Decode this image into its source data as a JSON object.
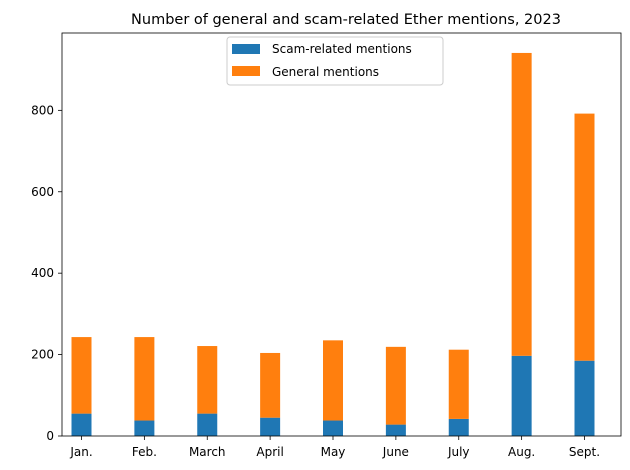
{
  "chart_data": {
    "type": "bar",
    "stacked": true,
    "title": "Number of general and scam-related Ether mentions, 2023",
    "xlabel": "",
    "ylabel": "",
    "categories": [
      "Jan.",
      "Feb.",
      "March",
      "April",
      "May",
      "June",
      "July",
      "Aug.",
      "Sept."
    ],
    "series": [
      {
        "name": "Scam-related mentions",
        "color": "#1f77b4",
        "values": [
          55,
          38,
          55,
          45,
          38,
          28,
          42,
          197,
          185
        ]
      },
      {
        "name": "General mentions",
        "color": "#ff7f0e",
        "values": [
          188,
          205,
          166,
          159,
          197,
          191,
          170,
          744,
          607
        ]
      }
    ],
    "ylim": [
      0,
      990
    ],
    "yticks": [
      0,
      200,
      400,
      600,
      800
    ],
    "grid": false,
    "legend_position": "top-center"
  }
}
